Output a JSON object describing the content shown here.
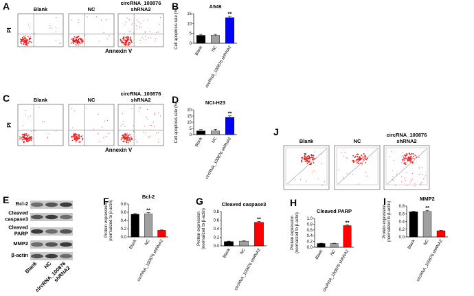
{
  "panel_letters": [
    "A",
    "B",
    "C",
    "D",
    "E",
    "F",
    "G",
    "H",
    "I",
    "J"
  ],
  "flow_A": {
    "titles": [
      [
        "Blank"
      ],
      [
        "NC"
      ],
      [
        "circRNA_100876",
        "shRNA2"
      ]
    ],
    "y_label": "PI",
    "x_label": "Annexin V"
  },
  "flow_C": {
    "titles": [
      [
        "Blank"
      ],
      [
        "NC"
      ],
      [
        "circRNA_100876",
        "shRNA2"
      ]
    ],
    "y_label": "PI",
    "x_label": "Annexin V"
  },
  "flow_J": {
    "titles": [
      [
        "Blank"
      ],
      [
        "NC"
      ],
      [
        "circRNA_100876",
        "shRNA2"
      ]
    ]
  },
  "western_blot": {
    "bands": [
      [
        "Bcl-2"
      ],
      [
        "Cleaved",
        "caspase3"
      ],
      [
        "Cleaved",
        "PARP"
      ],
      [
        "MMP2"
      ],
      [
        "β-actin"
      ]
    ],
    "lanes": [
      [
        "Blank"
      ],
      [
        "NC"
      ],
      [
        "circRNA_100876",
        "shRNA2"
      ]
    ]
  },
  "chart_data": [
    {
      "type": "bar",
      "title": "A549",
      "y_label": [
        "Cell apoptosis rate (%)"
      ],
      "categories": [
        "Blank",
        "NC",
        "circRNA_100876 shRNA2"
      ],
      "values": [
        4,
        4,
        13
      ],
      "errors": [
        0.5,
        0.5,
        0.8
      ],
      "colors": [
        "#000000",
        "#a0a0a0",
        "#0000ff"
      ],
      "ylim": [
        0,
        15
      ],
      "yticks": [
        0,
        5,
        10,
        15
      ],
      "annotation": "**"
    },
    {
      "type": "bar",
      "title": "NCI-H23",
      "y_label": [
        "Cell apoptosis rate (%)"
      ],
      "categories": [
        "Blank",
        "NC",
        "circRNA_100876 shRNA2"
      ],
      "values": [
        3,
        3,
        14
      ],
      "errors": [
        1,
        1.3,
        1.2
      ],
      "colors": [
        "#000000",
        "#a0a0a0",
        "#0000ff"
      ],
      "ylim": [
        0,
        20
      ],
      "yticks": [
        0,
        5,
        10,
        15,
        20
      ],
      "annotation": "**"
    },
    {
      "type": "bar",
      "title": "Bcl-2",
      "y_label": [
        "Protein expression",
        "(normalized to β-actin)"
      ],
      "categories": [
        "Blank",
        "NC",
        "circRNA_100876 shRNA2"
      ],
      "values": [
        0.55,
        0.56,
        0.16
      ],
      "errors": [
        0.02,
        0.03,
        0.01
      ],
      "colors": [
        "#000000",
        "#a0a0a0",
        "#ff0000"
      ],
      "ylim": [
        0,
        0.8
      ],
      "yticks": [
        {
          "value": 0,
          "label": "0.0"
        },
        0.2,
        0.4,
        0.6,
        0.8
      ],
      "annotation": "**"
    },
    {
      "type": "bar",
      "title": "Cleaved caspase3",
      "y_label": [
        "Protein expression",
        "(normalized to β-actin)"
      ],
      "categories": [
        "Blank",
        "NC",
        "circRNA_100876 shRNA2"
      ],
      "values": [
        0.1,
        0.11,
        0.55
      ],
      "errors": [
        0.01,
        0.01,
        0.02
      ],
      "colors": [
        "#000000",
        "#a0a0a0",
        "#ff0000"
      ],
      "ylim": [
        0,
        0.8
      ],
      "yticks": [
        {
          "value": 0,
          "label": "0.0"
        },
        0.2,
        0.4,
        0.6,
        0.8
      ],
      "annotation": "**"
    },
    {
      "type": "bar",
      "title": "Cleaved PARP",
      "y_label": [
        "Protein expression",
        "(normalized to β-actin)"
      ],
      "categories": [
        "Blank",
        "NC",
        "circRNA_100876 shRNA2"
      ],
      "values": [
        0.13,
        0.13,
        0.75
      ],
      "errors": [
        0.01,
        0.01,
        0.02
      ],
      "colors": [
        "#000000",
        "#a0a0a0",
        "#ff0000"
      ],
      "ylim": [
        0,
        1
      ],
      "yticks": [
        {
          "value": 0,
          "label": "0.0"
        },
        0.2,
        0.4,
        0.6,
        0.8,
        {
          "value": 1,
          "label": "1.0"
        }
      ],
      "annotation": "**"
    },
    {
      "type": "bar",
      "title": "MMP2",
      "y_label": [
        "Protein expression",
        "(normalized to β-actin)"
      ],
      "categories": [
        "Blank",
        "NC",
        "circRNA_100876 shRNA2"
      ],
      "values": [
        0.65,
        0.66,
        0.16
      ],
      "errors": [
        0.02,
        0.03,
        0.01
      ],
      "colors": [
        "#000000",
        "#a0a0a0",
        "#ff0000"
      ],
      "ylim": [
        0,
        0.8
      ],
      "yticks": [
        {
          "value": 0,
          "label": "0.0"
        },
        0.2,
        0.4,
        0.6,
        0.8
      ],
      "annotation": "**"
    }
  ]
}
